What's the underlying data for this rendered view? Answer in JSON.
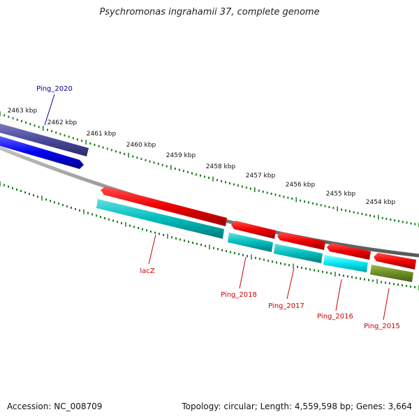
{
  "title": "Psychromonas ingrahamii 37, complete genome",
  "footer": {
    "accession": "Accession: NC_008709",
    "topology": "Topology: circular; Length: 4,559,598 bp; Genes: 3,664"
  },
  "scale_labels": [
    "2463 kbp",
    "2462 kbp",
    "2461 kbp",
    "2460 kbp",
    "2459 kbp",
    "2458 kbp",
    "2457 kbp",
    "2456 kbp",
    "2455 kbp",
    "2454 kbp"
  ],
  "features": {
    "forward": [
      {
        "name": "Ping_2020",
        "color": "#0000ee",
        "label_color": "#00008b",
        "has_cds": true
      }
    ],
    "reverse": [
      {
        "name": "lacZ",
        "label_color": "#cc0000"
      },
      {
        "name": "Ping_2018",
        "label_color": "#cc0000"
      },
      {
        "name": "Ping_2017",
        "label_color": "#cc0000"
      },
      {
        "name": "Ping_2016",
        "label_color": "#cc0000"
      },
      {
        "name": "Ping_2015",
        "label_color": "#cc0000"
      }
    ]
  },
  "colors": {
    "backbone": "#8c8c8c",
    "gene_forward": "#4a4a9e",
    "cds_forward": "#0000ee",
    "gene_reverse": "#ee0000",
    "cds_reverse": "#00c8c8",
    "cds_reverse_light": "#00e5ee",
    "cds_other": "#6b8e23",
    "tick": "#1a7a1a"
  }
}
